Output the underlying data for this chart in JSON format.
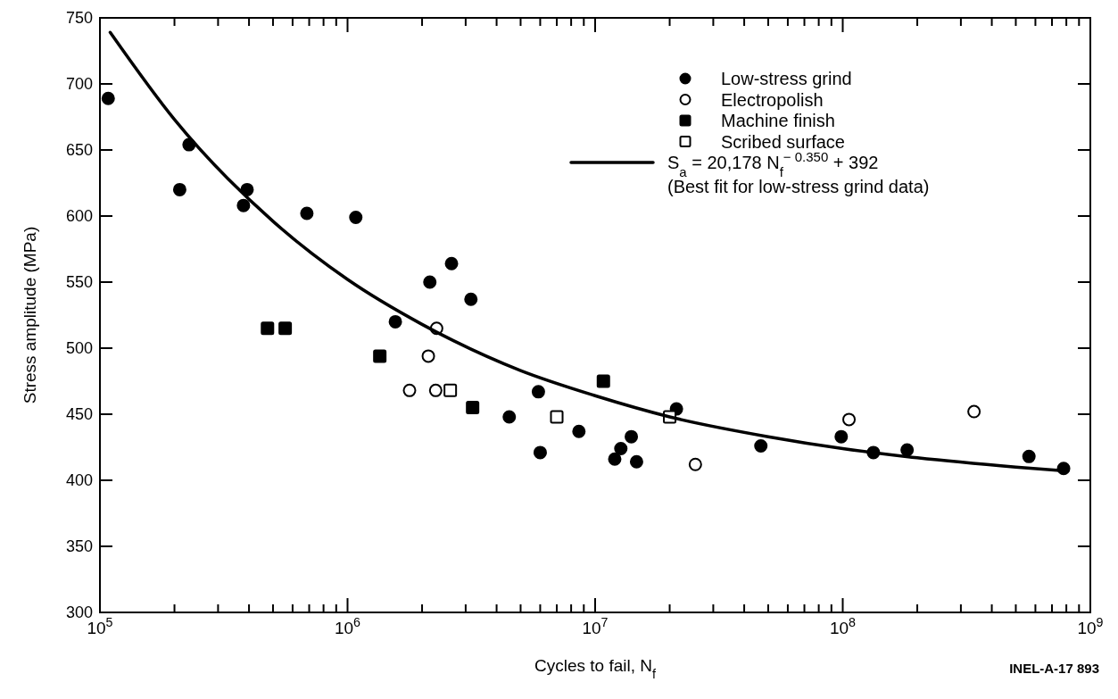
{
  "chart_data": {
    "type": "scatter",
    "xlabel": "Cycles to fail, N$_{f}$",
    "ylabel": "Stress amplitude (MPa)",
    "log": "x",
    "xlim": [
      100000,
      1000000000
    ],
    "ylim": [
      300,
      750
    ],
    "xticks": [
      {
        "value": 100000,
        "label": "10$^{5}$"
      },
      {
        "value": 200000,
        "label": null
      },
      {
        "value": 300000,
        "label": null
      },
      {
        "value": 400000,
        "label": null
      },
      {
        "value": 500000,
        "label": null
      },
      {
        "value": 600000,
        "label": null
      },
      {
        "value": 700000,
        "label": null
      },
      {
        "value": 800000,
        "label": null
      },
      {
        "value": 900000,
        "label": null
      },
      {
        "value": 1000000,
        "label": "10$^{6}$"
      },
      {
        "value": 2000000,
        "label": null
      },
      {
        "value": 3000000,
        "label": null
      },
      {
        "value": 4000000,
        "label": null
      },
      {
        "value": 5000000,
        "label": null
      },
      {
        "value": 6000000,
        "label": null
      },
      {
        "value": 7000000,
        "label": null
      },
      {
        "value": 8000000,
        "label": null
      },
      {
        "value": 9000000,
        "label": null
      },
      {
        "value": 10000000,
        "label": "10$^{7}$"
      },
      {
        "value": 20000000,
        "label": null
      },
      {
        "value": 30000000,
        "label": null
      },
      {
        "value": 40000000,
        "label": null
      },
      {
        "value": 50000000,
        "label": null
      },
      {
        "value": 60000000,
        "label": null
      },
      {
        "value": 70000000,
        "label": null
      },
      {
        "value": 80000000,
        "label": null
      },
      {
        "value": 90000000,
        "label": null
      },
      {
        "value": 100000000,
        "label": "10$^{8}$"
      },
      {
        "value": 200000000,
        "label": null
      },
      {
        "value": 300000000,
        "label": null
      },
      {
        "value": 400000000,
        "label": null
      },
      {
        "value": 500000000,
        "label": null
      },
      {
        "value": 600000000,
        "label": null
      },
      {
        "value": 700000000,
        "label": null
      },
      {
        "value": 800000000,
        "label": null
      },
      {
        "value": 900000000,
        "label": null
      },
      {
        "value": 1000000000,
        "label": "10$^{9}$"
      }
    ],
    "yticks": [
      300,
      350,
      400,
      450,
      500,
      550,
      600,
      650,
      700,
      750
    ],
    "grid": false,
    "legend": "top right",
    "series": [
      {
        "name": "Low-stress grind",
        "marker": "circle",
        "color": "#000000",
        "x": [
          108000,
          210000,
          229000,
          380000,
          393000,
          685000,
          1080000,
          1560000,
          2150000,
          2630000,
          3150000,
          4500000,
          5900000,
          6000000,
          8600000,
          12000000,
          12700000,
          14000000,
          14700000,
          21300000,
          46700000,
          98600000,
          133000000,
          182000000,
          565000000,
          780000000
        ],
        "values": [
          689,
          620,
          654,
          608,
          620,
          602,
          599,
          520,
          550,
          564,
          537,
          448,
          467,
          421,
          437,
          416,
          424,
          433,
          414,
          454,
          426,
          433,
          421,
          423,
          418,
          409
        ]
      },
      {
        "name": "Electropolish",
        "marker": "circle",
        "color": "#ffffff",
        "x": [
          1780000,
          2120000,
          2270000,
          2290000,
          25400000,
          106000000,
          339000000
        ],
        "values": [
          468,
          494,
          468,
          515,
          412,
          446,
          452
        ]
      },
      {
        "name": "Machine finish",
        "marker": "square",
        "color": "#000000",
        "x": [
          475000,
          560000,
          1350000,
          3200000,
          10800000
        ],
        "values": [
          515,
          515,
          494,
          455,
          475
        ]
      },
      {
        "name": "Scribed surface",
        "marker": "square",
        "color": "#ffffff",
        "x": [
          2600000,
          7000000,
          20000000
        ],
        "values": [
          468,
          448,
          448
        ]
      },
      {
        "name": "S$_{a}$ = 20,178 N$_{f}$$^{− 0.350}$ + 392",
        "type": "line",
        "marker": "none",
        "line_style": "solid",
        "color": "#000000",
        "x": [
          110000,
          200000,
          500000,
          1000000,
          2000000,
          5000000,
          10000000,
          20000000,
          50000000,
          100000000,
          200000000,
          500000000,
          800000000
        ],
        "values": [
          739,
          673,
          596,
          552,
          518,
          483,
          464,
          448,
          433,
          424,
          417,
          410,
          407
        ]
      }
    ],
    "annotations": [
      "(Best fit for low-stress grind data)",
      "INEL-A-17 893"
    ]
  }
}
